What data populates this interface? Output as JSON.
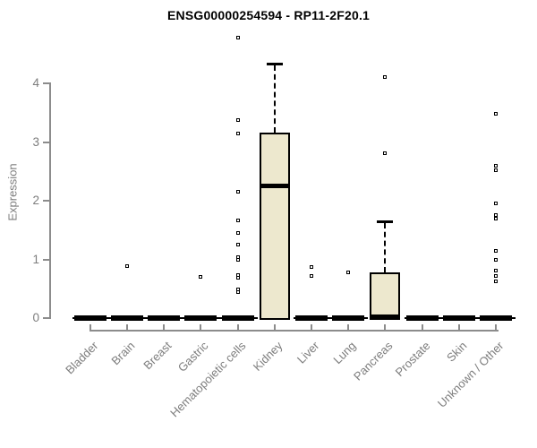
{
  "title": "ENSG00000254594 - RP11-2F20.1",
  "chart_data": {
    "type": "boxplot",
    "title": "ENSG00000254594 - RP11-2F20.1",
    "xlabel": "",
    "ylabel": "Expression",
    "ylim": [
      0,
      4.8
    ],
    "yticks": [
      0,
      1,
      2,
      3,
      4
    ],
    "grid": false,
    "legend": "none",
    "categories": [
      "Bladder",
      "Brain",
      "Breast",
      "Gastric",
      "Hematopoietic cells",
      "Kidney",
      "Liver",
      "Lung",
      "Pancreas",
      "Prostate",
      "Skin",
      "Unknown / Other"
    ],
    "series": [
      {
        "category": "Bladder",
        "q1": 0,
        "median": 0,
        "q3": 0,
        "whisker_low": 0,
        "whisker_high": 0,
        "outliers": []
      },
      {
        "category": "Brain",
        "q1": 0,
        "median": 0,
        "q3": 0,
        "whisker_low": 0,
        "whisker_high": 0,
        "outliers": [
          0.89
        ]
      },
      {
        "category": "Breast",
        "q1": 0,
        "median": 0,
        "q3": 0,
        "whisker_low": 0,
        "whisker_high": 0,
        "outliers": []
      },
      {
        "category": "Gastric",
        "q1": 0,
        "median": 0,
        "q3": 0,
        "whisker_low": 0,
        "whisker_high": 0,
        "outliers": [
          0.7
        ]
      },
      {
        "category": "Hematopoietic cells",
        "q1": 0,
        "median": 0,
        "q3": 0,
        "whisker_low": 0,
        "whisker_high": 0,
        "outliers": [
          4.79,
          3.38,
          3.15,
          2.15,
          1.67,
          1.46,
          1.26,
          1.04,
          0.99,
          0.73,
          0.69,
          0.49,
          0.45
        ]
      },
      {
        "category": "Kidney",
        "q1": 0,
        "median": 2.25,
        "q3": 3.16,
        "whisker_low": 0,
        "whisker_high": 4.34,
        "outliers": []
      },
      {
        "category": "Liver",
        "q1": 0,
        "median": 0,
        "q3": 0,
        "whisker_low": 0,
        "whisker_high": 0,
        "outliers": [
          0.87,
          0.72
        ]
      },
      {
        "category": "Lung",
        "q1": 0,
        "median": 0,
        "q3": 0,
        "whisker_low": 0,
        "whisker_high": 0,
        "outliers": [
          0.78
        ]
      },
      {
        "category": "Pancreas",
        "q1": 0,
        "median": 0.02,
        "q3": 0.78,
        "whisker_low": 0,
        "whisker_high": 1.65,
        "outliers": [
          4.11,
          2.81
        ]
      },
      {
        "category": "Prostate",
        "q1": 0,
        "median": 0,
        "q3": 0,
        "whisker_low": 0,
        "whisker_high": 0,
        "outliers": []
      },
      {
        "category": "Skin",
        "q1": 0,
        "median": 0,
        "q3": 0,
        "whisker_low": 0,
        "whisker_high": 0,
        "outliers": []
      },
      {
        "category": "Unknown / Other",
        "q1": 0,
        "median": 0,
        "q3": 0,
        "whisker_low": 0,
        "whisker_high": 0,
        "outliers": [
          3.49,
          2.6,
          2.52,
          1.95,
          1.76,
          1.7,
          1.15,
          0.99,
          0.81,
          0.72,
          0.63
        ]
      }
    ],
    "colors": {
      "box_fill": "#EDE8CE",
      "box_border": "#000000",
      "median": "#000000",
      "whisker": "#000000",
      "outlier_fill": "#ffffff",
      "axis": "#8C8C8C",
      "tick_label": "#7D7D7D",
      "title": "#000000",
      "background": "#FFFFFF"
    }
  }
}
